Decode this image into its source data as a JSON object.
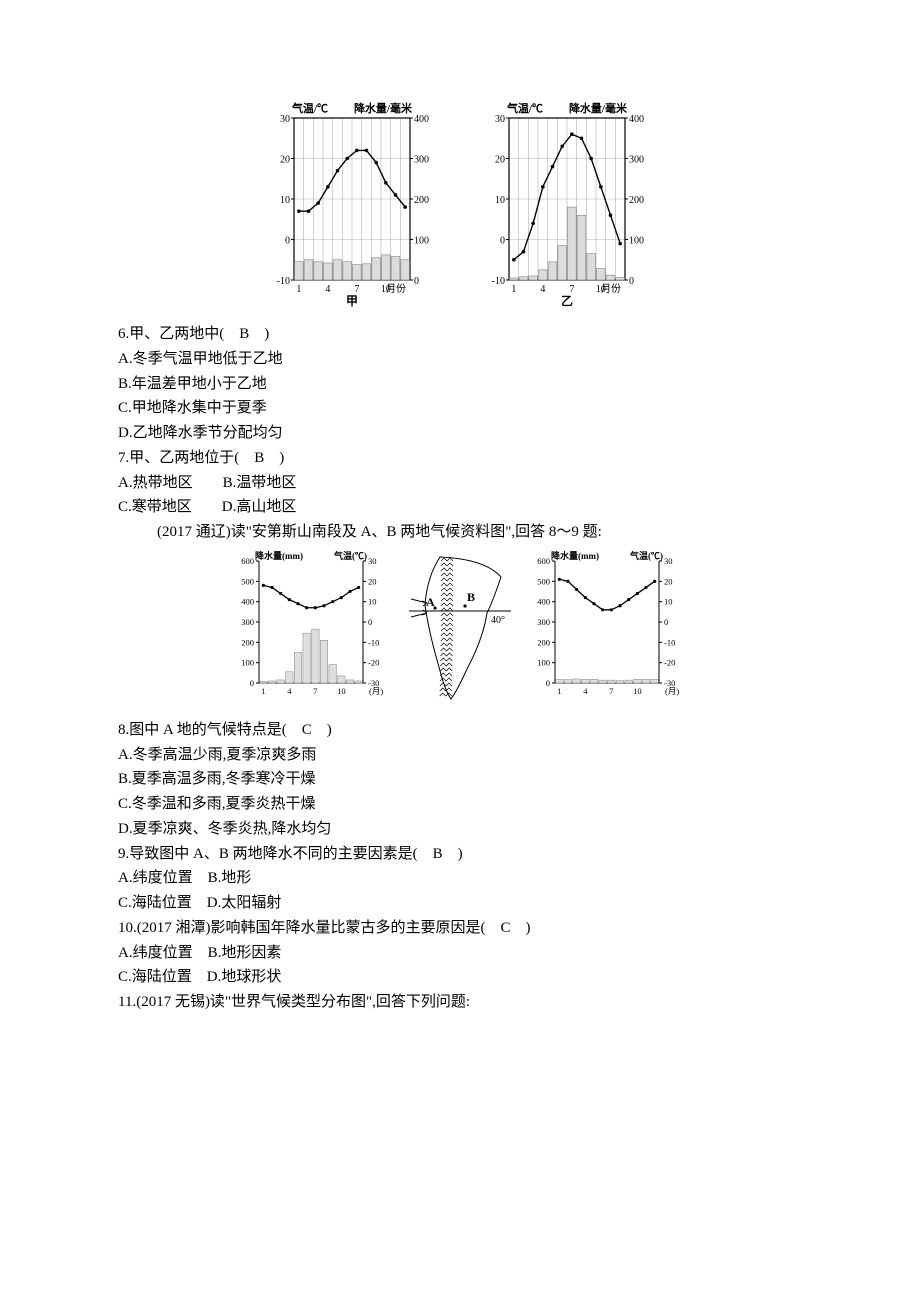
{
  "charts1": {
    "axis_color": "#000000",
    "grid_color": "#b0b0b0",
    "line_color": "#000000",
    "bar_fill": "#dcdcdc",
    "bar_stroke": "#808080",
    "left": {
      "y_left_label": "气温/℃",
      "y_right_label": "降水量/毫米",
      "x_label": "甲",
      "months": [
        1,
        4,
        7,
        10
      ],
      "x_note": "月份",
      "temp_ticks": [
        -10,
        0,
        10,
        20,
        30
      ],
      "precip_ticks": [
        0,
        100,
        200,
        300,
        400
      ],
      "temp": [
        7,
        7,
        9,
        13,
        17,
        20,
        22,
        22,
        19,
        14,
        11,
        8
      ],
      "precip": [
        45,
        50,
        45,
        42,
        50,
        45,
        38,
        40,
        55,
        62,
        58,
        50
      ]
    },
    "right": {
      "y_left_label": "气温/℃",
      "y_right_label": "降水量/毫米",
      "x_label": "乙",
      "months": [
        1,
        4,
        7,
        10
      ],
      "x_note": "月份",
      "temp_ticks": [
        -10,
        0,
        10,
        20,
        30
      ],
      "precip_ticks": [
        0,
        100,
        200,
        300,
        400
      ],
      "temp": [
        -5,
        -3,
        4,
        13,
        18,
        23,
        26,
        25,
        20,
        13,
        6,
        -1
      ],
      "precip": [
        5,
        8,
        10,
        25,
        45,
        85,
        180,
        160,
        65,
        28,
        12,
        6
      ]
    }
  },
  "q6": {
    "text": "6.甲、乙两地中(　B　)",
    "a": "A.冬季气温甲地低于乙地",
    "b": "B.年温差甲地小于乙地",
    "c": "C.甲地降水集中于夏季",
    "d": "D.乙地降水季节分配均匀"
  },
  "q7": {
    "text": "7.甲、乙两地位于(　B　)",
    "ab": "A.热带地区　　B.温带地区",
    "cd": "C.寒带地区　　D.高山地区"
  },
  "intro2": "(2017 通辽)读\"安第斯山南段及 A、B 两地气候资料图\",回答 8～9 题:",
  "charts2": {
    "axis_color": "#000000",
    "grid_color": "#bfbfbf",
    "line_color": "#000000",
    "bar_fill": "#dedede",
    "bar_stroke": "#808080",
    "map_bg": "#ffffff",
    "left": {
      "y_left_label": "降水量(mm)",
      "y_right_label": "气温(℃)",
      "x_label": "(月)",
      "months": [
        1,
        4,
        7,
        10
      ],
      "temp_ticks": [
        -30,
        -20,
        -10,
        0,
        10,
        20,
        30
      ],
      "precip_ticks": [
        0,
        100,
        200,
        300,
        400,
        500,
        600
      ],
      "temp": [
        18,
        17,
        14,
        11,
        9,
        7,
        7,
        8,
        10,
        12,
        15,
        17
      ],
      "precip": [
        8,
        10,
        15,
        55,
        150,
        245,
        265,
        210,
        90,
        35,
        15,
        10
      ]
    },
    "right": {
      "y_left_label": "降水量(mm)",
      "y_right_label": "气温(℃)",
      "x_label": "(月)",
      "months": [
        1,
        4,
        7,
        10
      ],
      "temp_ticks": [
        -30,
        -20,
        -10,
        0,
        10,
        20,
        30
      ],
      "precip_ticks": [
        0,
        100,
        200,
        300,
        400,
        500,
        600
      ],
      "temp": [
        21,
        20,
        16,
        12,
        9,
        6,
        6,
        8,
        11,
        14,
        17,
        20
      ],
      "precip": [
        18,
        16,
        20,
        18,
        18,
        14,
        14,
        12,
        14,
        18,
        18,
        18
      ]
    },
    "map": {
      "labelA": "A",
      "labelB": "B",
      "lat": "40°"
    }
  },
  "q8": {
    "text": "8.图中 A 地的气候特点是(　C　)",
    "a": "A.冬季高温少雨,夏季凉爽多雨",
    "b": "B.夏季高温多雨,冬季寒冷干燥",
    "c": "C.冬季温和多雨,夏季炎热干燥",
    "d": "D.夏季凉爽、冬季炎热,降水均匀"
  },
  "q9": {
    "text": "9.导致图中 A、B 两地降水不同的主要因素是(　B　)",
    "ab": "A.纬度位置　B.地形",
    "cd": "C.海陆位置　D.太阳辐射"
  },
  "q10": {
    "text": "10.(2017 湘潭)影响韩国年降水量比蒙古多的主要原因是(　C　)",
    "ab": "A.纬度位置　B.地形因素",
    "cd": "C.海陆位置　D.地球形状"
  },
  "q11": {
    "text": "11.(2017 无锡)读\"世界气候类型分布图\",回答下列问题:"
  }
}
